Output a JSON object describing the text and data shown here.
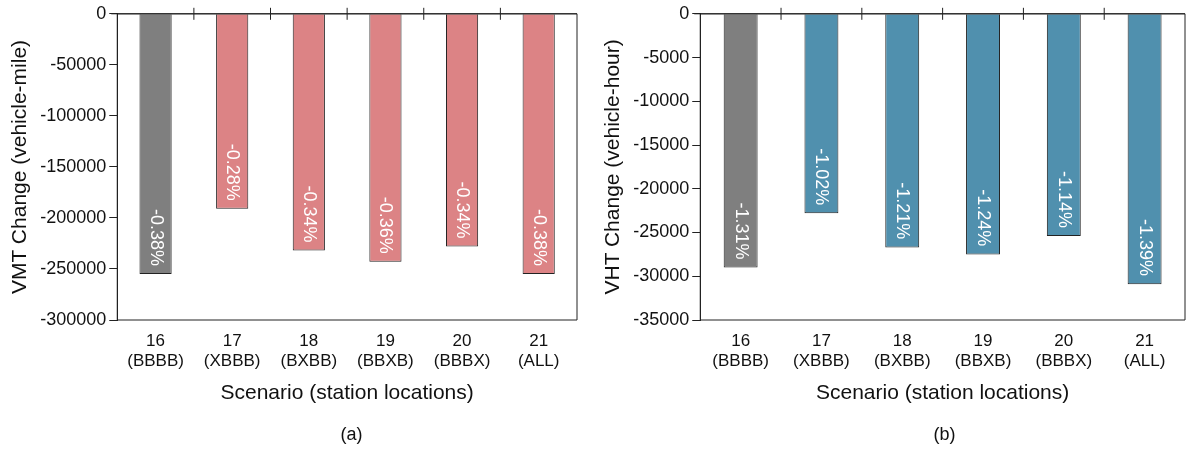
{
  "chart_data": [
    {
      "type": "bar",
      "categories": [
        "16\n(BBBB)",
        "17\n(XBBB)",
        "18\n(BXBB)",
        "19\n(BBXB)",
        "20\n(BBBX)",
        "21\n(ALL)"
      ],
      "values": [
        -255000,
        -191000,
        -232000,
        -243000,
        -228000,
        -255000
      ],
      "colors": [
        "#7f7f7f",
        "#dc8385",
        "#dc8385",
        "#dc8385",
        "#dc8385",
        "#dc8385"
      ],
      "xlabel": "Scenario (station locations)",
      "ylabel": "VMT Change (vehicle-mile)",
      "ylim": [
        -300000,
        0
      ],
      "yticks": [
        -300000,
        -250000,
        -200000,
        -150000,
        -100000,
        -50000,
        0
      ],
      "grid": false,
      "legend": false,
      "annotations": [
        {
          "text": "-0.38%",
          "x": "16\n(BBBB)",
          "y": -255000
        },
        {
          "text": "-0.28%",
          "x": "17\n(XBBB)",
          "y": -191000
        },
        {
          "text": "-0.34%",
          "x": "18\n(BXBB)",
          "y": -232000
        },
        {
          "text": "-0.36%",
          "x": "19\n(BBXB)",
          "y": -243000
        },
        {
          "text": "-0.34%",
          "x": "20\n(BBBX)",
          "y": -228000
        },
        {
          "text": "-0.38%",
          "x": "21\n(ALL)",
          "y": -255000
        },
        "(a)"
      ]
    },
    {
      "type": "bar",
      "categories": [
        "16\n(BBBB)",
        "17\n(XBBB)",
        "18\n(BXBB)",
        "19\n(BBXB)",
        "20\n(BBBX)",
        "21\n(ALL)"
      ],
      "values": [
        -29000,
        -22800,
        -26700,
        -27500,
        -25400,
        -30900
      ],
      "colors": [
        "#7f7f7f",
        "#5090ae",
        "#5090ae",
        "#5090ae",
        "#5090ae",
        "#5090ae"
      ],
      "xlabel": "Scenario (station locations)",
      "ylabel": "VHT Change (vehicle-hour)",
      "ylim": [
        -35000,
        0
      ],
      "yticks": [
        -35000,
        -30000,
        -25000,
        -20000,
        -15000,
        -10000,
        -5000,
        0
      ],
      "grid": false,
      "legend": false,
      "annotations": [
        {
          "text": "-1.31%",
          "x": "16\n(BBBB)",
          "y": -29000
        },
        {
          "text": "-1.02%",
          "x": "17\n(XBBB)",
          "y": -22800
        },
        {
          "text": "-1.21%",
          "x": "18\n(BXBB)",
          "y": -26700
        },
        {
          "text": "-1.24%",
          "x": "19\n(BBXB)",
          "y": -27500
        },
        {
          "text": "-1.14%",
          "x": "20\n(BBBX)",
          "y": -25400
        },
        {
          "text": "-1.39%",
          "x": "21\n(ALL)",
          "y": -30900
        },
        "(b)"
      ]
    }
  ]
}
